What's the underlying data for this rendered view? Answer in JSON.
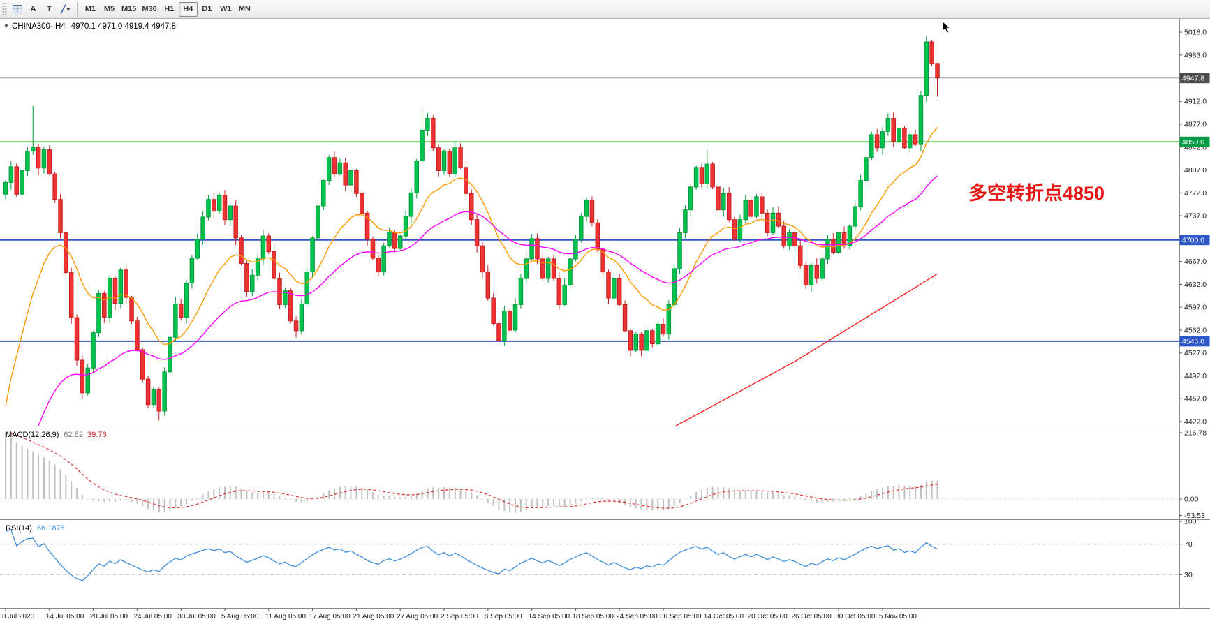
{
  "toolbar": {
    "text_tool_label": "A",
    "type_tool_label": "T",
    "shape_icon_glyph": "╱",
    "caret_glyph": "▾",
    "timeframes": [
      {
        "label": "M1"
      },
      {
        "label": "M5"
      },
      {
        "label": "M15"
      },
      {
        "label": "M30"
      },
      {
        "label": "H1"
      },
      {
        "label": "H4",
        "active": true
      },
      {
        "label": "D1"
      },
      {
        "label": "W1"
      },
      {
        "label": "MN"
      }
    ]
  },
  "header": {
    "collapse_icon": "▼",
    "symbol_title": "CHINA300-,H4",
    "ohlc_text": "4970.1 4971.0 4919.4 4947.8"
  },
  "annotation": {
    "text": "多空转折点4850",
    "color": "#e81414"
  },
  "chart_data": {
    "type": "candlestick",
    "symbol": "CHINA300-",
    "timeframe": "H4",
    "ohlc_display": {
      "open": 4970.1,
      "high": 4971.0,
      "low": 4919.4,
      "close": 4947.8
    },
    "price_axis": {
      "min": 4422,
      "max": 5018,
      "tick_step": 35,
      "ticks": [
        5018,
        4983,
        4912,
        4877,
        4842,
        4807,
        4772,
        4737,
        4667,
        4632,
        4597,
        4562,
        4527,
        4492,
        4457,
        4422
      ],
      "badges": [
        {
          "label": "4947.8",
          "value": 4947.8,
          "bg": "#4d4d4d"
        },
        {
          "label": "4850.0",
          "value": 4850,
          "bg": "#009a44"
        },
        {
          "label": "4700.0",
          "value": 4700,
          "bg": "#2e58c8"
        },
        {
          "label": "4545.0",
          "value": 4545,
          "bg": "#2e58c8"
        }
      ]
    },
    "hlines": [
      {
        "value": 4850,
        "color": "#00b200",
        "width": 1.6
      },
      {
        "value": 4700,
        "color": "#3056c8",
        "width": 2
      },
      {
        "value": 4545,
        "color": "#3056c8",
        "width": 2
      }
    ],
    "current_price": {
      "value": 4947.8,
      "color": "#9a9a9a"
    },
    "candles": {
      "first_open": 4770,
      "up_color": "#00c24e",
      "up_border": "#009b3a",
      "down_color": "#ed3333",
      "down_border": "#c81e1e",
      "closes": [
        4788,
        4812,
        4770,
        4806,
        4836,
        4842,
        4810,
        4838,
        4801,
        4762,
        4711,
        4650,
        4581,
        4516,
        4466,
        4504,
        4558,
        4618,
        4581,
        4641,
        4603,
        4654,
        4612,
        4576,
        4532,
        4487,
        4448,
        4471,
        4438,
        4498,
        4551,
        4602,
        4581,
        4634,
        4672,
        4701,
        4735,
        4762,
        4744,
        4768,
        4731,
        4752,
        4703,
        4664,
        4621,
        4646,
        4671,
        4706,
        4682,
        4641,
        4601,
        4622,
        4576,
        4561,
        4602,
        4651,
        4703,
        4752,
        4791,
        4826,
        4801,
        4818,
        4784,
        4806,
        4771,
        4741,
        4701,
        4672,
        4651,
        4691,
        4712,
        4687,
        4706,
        4736,
        4772,
        4821,
        4868,
        4886,
        4841,
        4806,
        4836,
        4801,
        4841,
        4811,
        4771,
        4731,
        4691,
        4651,
        4611,
        4572,
        4546,
        4591,
        4562,
        4601,
        4641,
        4671,
        4702,
        4671,
        4641,
        4671,
        4641,
        4601,
        4631,
        4671,
        4701,
        4736,
        4761,
        4726,
        4686,
        4651,
        4611,
        4641,
        4601,
        4561,
        4531,
        4556,
        4531,
        4561,
        4541,
        4571,
        4556,
        4601,
        4656,
        4711,
        4746,
        4781,
        4811,
        4786,
        4816,
        4781,
        4746,
        4771,
        4731,
        4701,
        4731,
        4761,
        4736,
        4766,
        4741,
        4711,
        4741,
        4721,
        4691,
        4711,
        4691,
        4661,
        4631,
        4661,
        4641,
        4671,
        4701,
        4681,
        4711,
        4691,
        4721,
        4751,
        4791,
        4826,
        4861,
        4841,
        4866,
        4886,
        4851,
        4871,
        4841,
        4861,
        4846,
        4921,
        5003,
        4970.1,
        4947.8
      ],
      "wick_overrides": {
        "5": {
          "high": 4905
        },
        "28": {
          "low": 4424
        },
        "76": {
          "high": 4903
        },
        "128": {
          "high": 4838
        },
        "168": {
          "high": 5012
        },
        "169": {
          "high": 5006
        },
        "170": {
          "high": 4971.0,
          "low": 4919.4
        }
      }
    },
    "moving_averages": [
      {
        "name": "fast-ma",
        "type": "ema",
        "period": 16,
        "seed": 4400,
        "color": "#ff9900"
      },
      {
        "name": "slow-ma",
        "type": "ema",
        "period": 40,
        "seed": 4250,
        "color": "#ff00ff"
      },
      {
        "name": "long-trend-ma",
        "type": "anchors",
        "points": [
          [
            118,
            4396
          ],
          [
            144,
            4514
          ],
          [
            170,
            4648
          ]
        ],
        "color": "#ff1f1f"
      }
    ],
    "macd": {
      "label": "MACD(12,26,9)",
      "main_value": "62.82",
      "signal_value": "39.76",
      "params": [
        12,
        26,
        9
      ],
      "seed_offset": 216.78,
      "bar_color": "#c0c0c0",
      "signal_color": "#e03030",
      "axis": [
        {
          "label": "216.78",
          "value": 216.78
        },
        {
          "label": "0.00",
          "value": 0
        },
        {
          "label": "-53.53",
          "value": -53.53
        }
      ]
    },
    "rsi": {
      "label": "RSI(14)",
      "value": "66.1878",
      "period": 14,
      "line_color": "#3e8ede",
      "levels": [
        70,
        30
      ],
      "axis": [
        {
          "label": "100",
          "value": 100
        },
        {
          "label": "70",
          "value": 70
        },
        {
          "label": "30",
          "value": 30
        }
      ]
    },
    "time_labels": [
      "8 Jul 2020",
      "14 Jul 05:00",
      "20 Jul 05:00",
      "24 Jul 05:00",
      "30 Jul 05:00",
      "5 Aug 05:00",
      "11 Aug 05:00",
      "17 Aug 05:00",
      "21 Aug 05:00",
      "27 Aug 05:00",
      "2 Sep 05:00",
      "8 Sep 05:00",
      "14 Sep 05:00",
      "18 Sep 05:00",
      "24 Sep 05:00",
      "30 Sep 05:00",
      "14 Oct 05:00",
      "20 Oct 05:00",
      "26 Oct 05:00",
      "30 Oct 05:00",
      "5 Nov 05:00"
    ],
    "label_every_n_candles": 8
  }
}
